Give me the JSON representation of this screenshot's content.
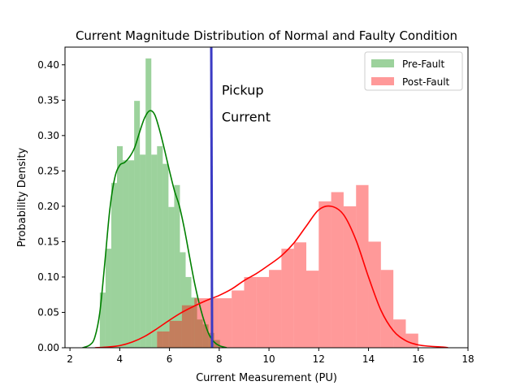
{
  "chart_data": {
    "type": "histogram",
    "title": "Current Magnitude Distribution of Normal and Faulty Condition",
    "xlabel": "Current Measurement (PU)",
    "ylabel": "Probability Density",
    "xlim": [
      1.8,
      18
    ],
    "ylim": [
      0,
      0.425
    ],
    "x_ticks": [
      2,
      4,
      6,
      8,
      10,
      12,
      14,
      16,
      18
    ],
    "y_ticks": [
      0.0,
      0.05,
      0.1,
      0.15,
      0.2,
      0.25,
      0.3,
      0.35,
      0.4
    ],
    "x_tick_labels": [
      "2",
      "4",
      "6",
      "8",
      "10",
      "12",
      "14",
      "16",
      "18"
    ],
    "y_tick_labels": [
      "0.00",
      "0.05",
      "0.10",
      "0.15",
      "0.20",
      "0.25",
      "0.30",
      "0.35",
      "0.40"
    ],
    "legend_position": "top-right",
    "series": [
      {
        "name": "Pre-Fault",
        "bar_color": "#2ca02c",
        "bar_opacity": 0.47,
        "line_color": "#008000",
        "bin_edges": [
          3.2,
          3.43,
          3.66,
          3.89,
          4.12,
          4.35,
          4.58,
          4.81,
          5.04,
          5.27,
          5.5,
          5.73,
          5.96,
          6.19,
          6.42,
          6.65,
          6.88,
          7.11,
          7.34,
          7.57,
          7.8,
          8.03
        ],
        "densities": [
          0.078,
          0.14,
          0.233,
          0.285,
          0.265,
          0.265,
          0.349,
          0.273,
          0.409,
          0.273,
          0.285,
          0.26,
          0.199,
          0.23,
          0.135,
          0.1,
          0.071,
          0.04,
          0.033,
          0.021,
          0.011
        ],
        "kde_x": [
          2.5,
          2.8,
          3.0,
          3.2,
          3.4,
          3.6,
          3.8,
          4.0,
          4.2,
          4.4,
          4.6,
          4.8,
          5.0,
          5.2,
          5.4,
          5.6,
          5.8,
          6.0,
          6.2,
          6.4,
          6.6,
          6.8,
          7.0,
          7.2,
          7.4,
          7.6,
          7.8,
          8.0,
          8.3
        ],
        "kde_y": [
          0.0,
          0.004,
          0.015,
          0.05,
          0.12,
          0.195,
          0.24,
          0.258,
          0.262,
          0.27,
          0.283,
          0.305,
          0.325,
          0.335,
          0.33,
          0.308,
          0.28,
          0.25,
          0.222,
          0.2,
          0.168,
          0.13,
          0.093,
          0.062,
          0.037,
          0.018,
          0.008,
          0.003,
          0.0
        ]
      },
      {
        "name": "Post-Fault",
        "bar_color": "#ff0000",
        "bar_opacity": 0.4,
        "line_color": "#ff0000",
        "bin_edges": [
          5.5,
          6.0,
          6.5,
          7.0,
          7.5,
          8.0,
          8.5,
          9.0,
          9.5,
          10.0,
          10.5,
          11.0,
          11.5,
          12.0,
          12.5,
          13.0,
          13.5,
          14.0,
          14.5,
          15.0,
          15.5,
          16.0
        ],
        "densities": [
          0.023,
          0.038,
          0.06,
          0.07,
          0.07,
          0.07,
          0.081,
          0.1,
          0.1,
          0.11,
          0.14,
          0.149,
          0.109,
          0.207,
          0.22,
          0.2,
          0.23,
          0.15,
          0.11,
          0.04,
          0.02
        ],
        "kde_x": [
          3.0,
          3.5,
          4.0,
          4.5,
          5.0,
          5.5,
          6.0,
          6.5,
          7.0,
          7.5,
          8.0,
          8.5,
          9.0,
          9.5,
          10.0,
          10.5,
          11.0,
          11.5,
          12.0,
          12.5,
          13.0,
          13.5,
          14.0,
          14.5,
          15.0,
          15.5,
          16.0,
          16.5,
          17.0,
          17.2
        ],
        "kde_y": [
          0.0,
          0.001,
          0.003,
          0.008,
          0.016,
          0.027,
          0.039,
          0.05,
          0.059,
          0.067,
          0.074,
          0.083,
          0.095,
          0.105,
          0.117,
          0.13,
          0.148,
          0.172,
          0.195,
          0.2,
          0.188,
          0.152,
          0.1,
          0.053,
          0.024,
          0.01,
          0.004,
          0.002,
          0.001,
          0.0
        ]
      }
    ],
    "vertical_line": {
      "x": 7.68,
      "color": "#3b3bc4"
    },
    "annotation": {
      "lines": [
        "Pickup",
        "Current"
      ],
      "x": 8.1,
      "y": 0.358
    }
  }
}
